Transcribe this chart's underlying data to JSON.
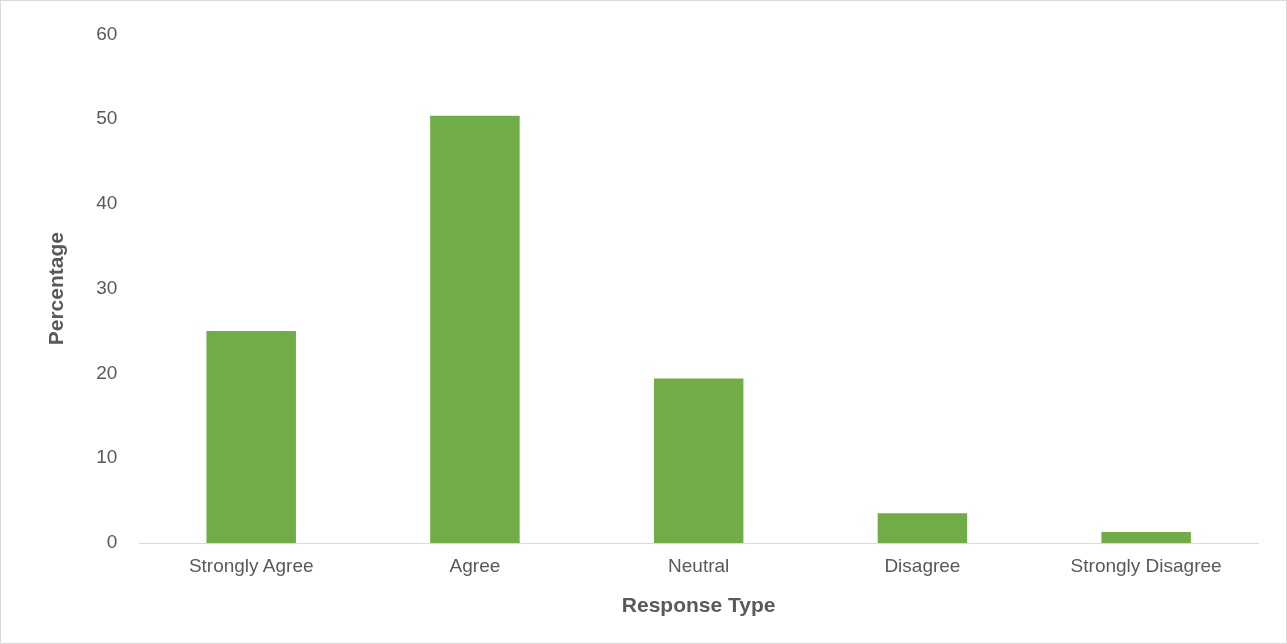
{
  "chart_data": {
    "type": "bar",
    "xlabel": "Response Type",
    "ylabel": "Percentage",
    "categories": [
      "Strongly Agree",
      "Agree",
      "Neutral",
      "Disagree",
      "Strongly Disagree"
    ],
    "values": [
      25,
      50.4,
      19.4,
      3.5,
      1.3
    ],
    "color": "#70ad47",
    "ylim": [
      0,
      60
    ],
    "yticks": [
      0,
      10,
      20,
      30,
      40,
      50,
      60
    ],
    "grid": false,
    "legend": false
  }
}
